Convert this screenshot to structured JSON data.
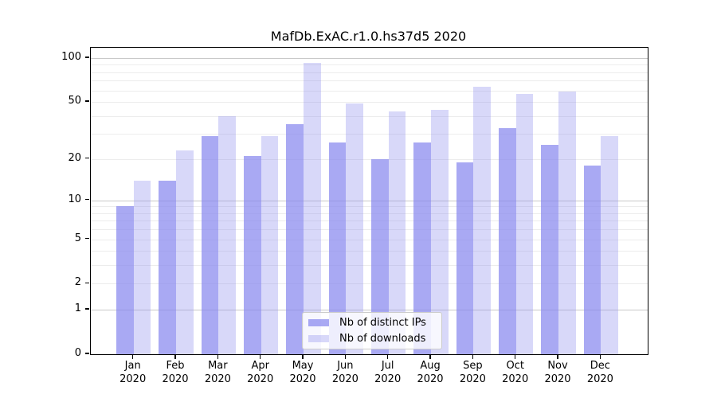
{
  "chart_data": {
    "type": "bar",
    "title": "MafDb.ExAC.r1.0.hs37d5 2020",
    "categories": [
      "Jan 2020",
      "Feb 2020",
      "Mar 2020",
      "Apr 2020",
      "May 2020",
      "Jun 2020",
      "Jul 2020",
      "Aug 2020",
      "Sep 2020",
      "Oct 2020",
      "Nov 2020",
      "Dec 2020"
    ],
    "months": [
      "Jan",
      "Feb",
      "Mar",
      "Apr",
      "May",
      "Jun",
      "Jul",
      "Aug",
      "Sep",
      "Oct",
      "Nov",
      "Dec"
    ],
    "year": "2020",
    "series": [
      {
        "name": "Nb of distinct IPs",
        "color": "rgba(136,136,238,0.72)",
        "values": [
          9,
          14,
          29,
          21,
          35,
          26,
          20,
          26,
          19,
          33,
          25,
          18
        ]
      },
      {
        "name": "Nb of downloads",
        "color": "rgba(136,136,238,0.33)",
        "values": [
          14,
          23,
          40,
          29,
          93,
          49,
          43,
          44,
          64,
          57,
          59,
          29
        ]
      }
    ],
    "yscale": "log1p",
    "ylim": [
      0,
      117
    ],
    "yticks": [
      100,
      50,
      20,
      10,
      5,
      2,
      1,
      0
    ],
    "major_gridlines": [
      1,
      10,
      100
    ],
    "minor_gridlines": [
      2,
      3,
      4,
      5,
      6,
      7,
      8,
      9,
      20,
      30,
      40,
      50,
      60,
      70,
      80,
      90
    ],
    "grid": "horizontal",
    "legend_position": "lower center"
  },
  "colors": {
    "bar_distinct_ips": "rgba(136,136,238,0.72)",
    "bar_downloads": "rgba(136,136,238,0.33)",
    "bar_distinct_ips_hex": "#a9a9f3",
    "bar_downloads_hex": "#d8d8f8",
    "grid_major": "#c9c9c9",
    "grid_minor": "#ececec",
    "spine": "#000000",
    "legend_border": "#cccccc",
    "text": "#000000"
  }
}
